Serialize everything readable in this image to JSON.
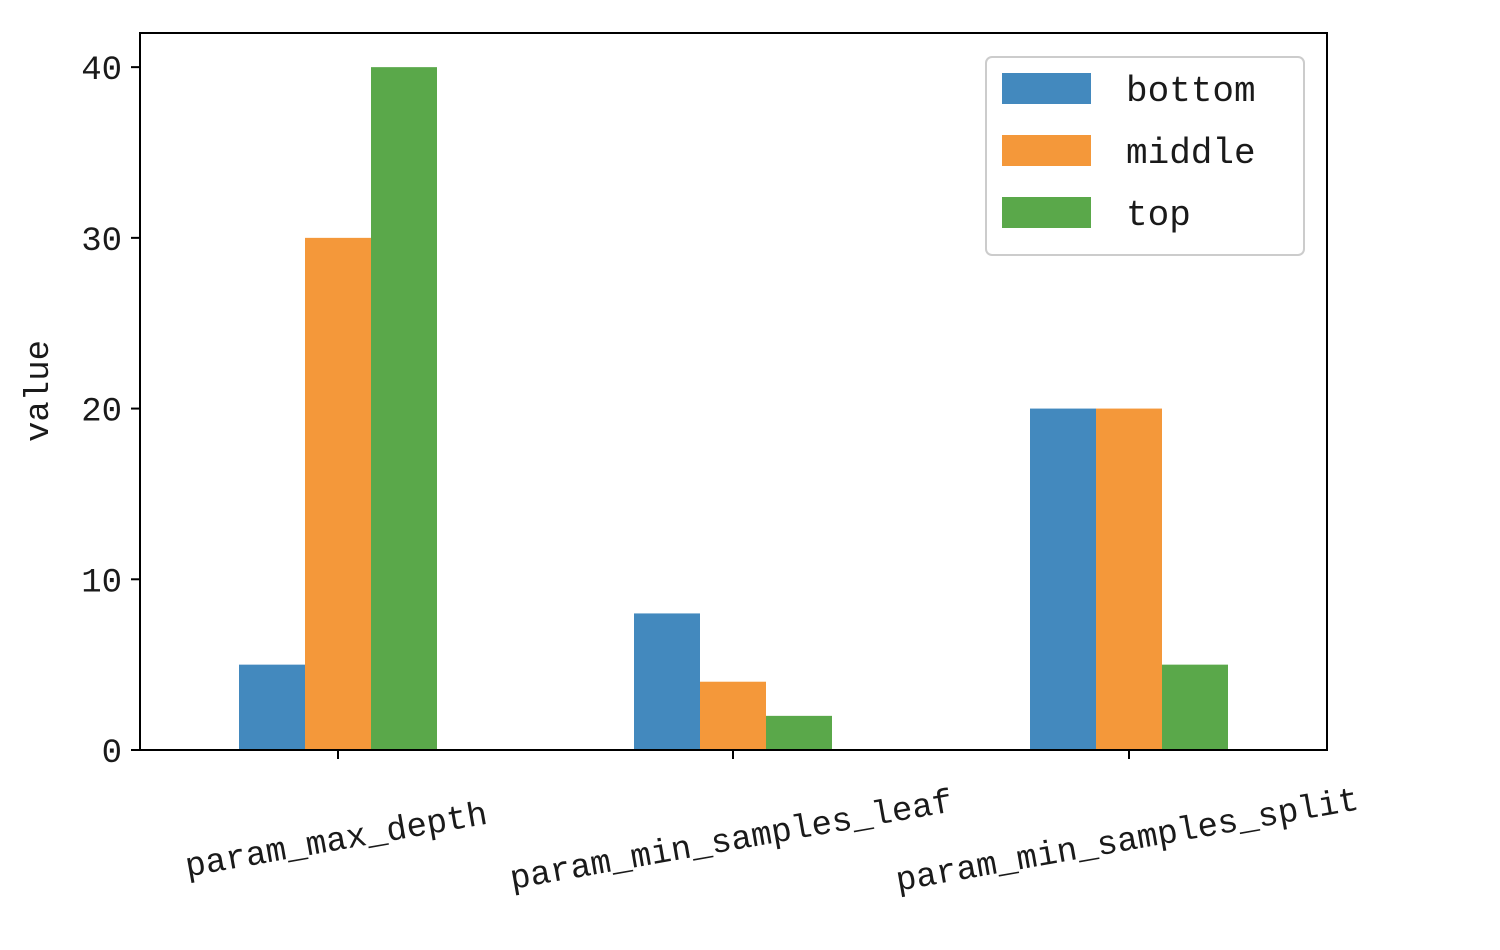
{
  "chart_data": {
    "type": "bar",
    "title": "",
    "xlabel": "",
    "ylabel": "value",
    "ylim": [
      0,
      42
    ],
    "yticks": [
      0,
      10,
      20,
      30,
      40
    ],
    "categories": [
      "param_max_depth",
      "param_min_samples_leaf",
      "param_min_samples_split"
    ],
    "series": [
      {
        "name": "bottom",
        "color": "#4389BE",
        "values": [
          5,
          8,
          20
        ]
      },
      {
        "name": "middle",
        "color": "#F4983A",
        "values": [
          30,
          4,
          20
        ]
      },
      {
        "name": "top",
        "color": "#5AA84A",
        "values": [
          40,
          2,
          5
        ]
      }
    ],
    "legend": {
      "position": "top-right"
    },
    "grid": false
  }
}
